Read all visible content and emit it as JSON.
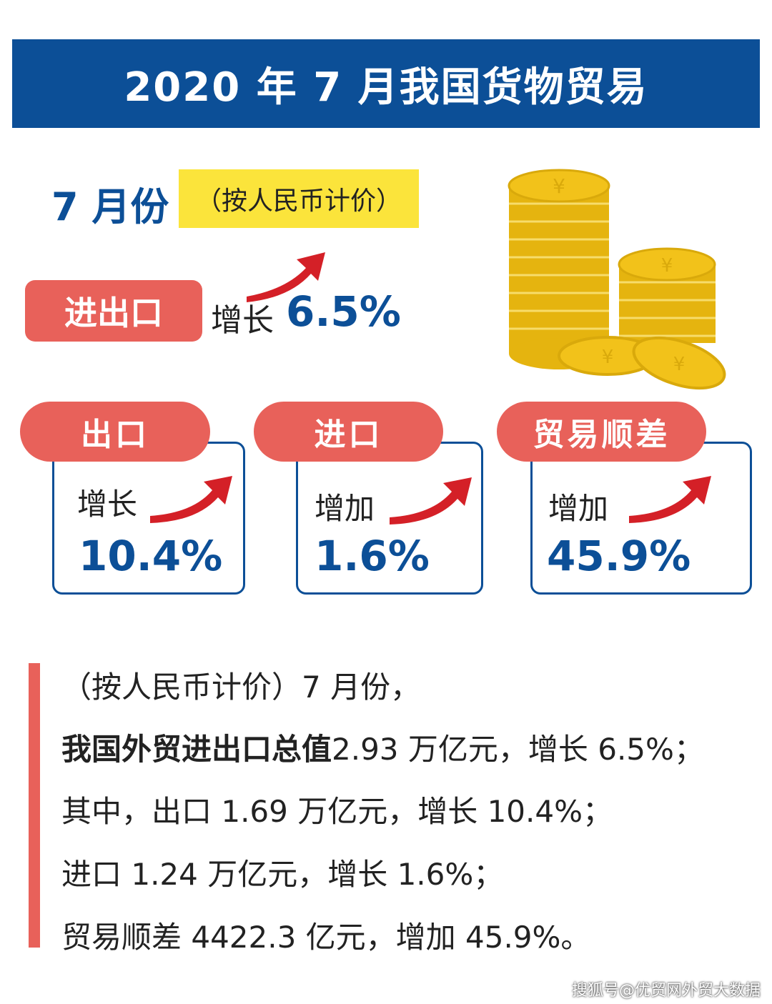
{
  "header": {
    "title": "2020 年 7 月我国货物贸易"
  },
  "summary": {
    "month_label": "7 月份",
    "pricing_note": "（按人民币计价）",
    "total_label": "进出口",
    "total_verb": "增长",
    "total_value": "6.5%"
  },
  "cards": [
    {
      "label": "出口",
      "verb": "增长",
      "value": "10.4%"
    },
    {
      "label": "进口",
      "verb": "增加",
      "value": "1.6%"
    },
    {
      "label": "贸易顺差",
      "verb": "增加",
      "value": "45.9%"
    }
  ],
  "details": {
    "line1": "（按人民币计价）7 月份，",
    "line2_bold": "我国外贸进出口总值",
    "line2_rest": "2.93 万亿元，增长 6.5%；",
    "line3": "其中，出口 1.69 万亿元，增长 10.4%；",
    "line4": "进口 1.24 万亿元，增长 1.6%；",
    "line5": "贸易顺差 4422.3 亿元，增加 45.9%。"
  },
  "watermark": "搜狐号@优贸网外贸大数据",
  "colors": {
    "brand_blue": "#0c4f97",
    "accent_red": "#e8615a",
    "highlight_yellow": "#fbe43b",
    "coin_gold": "#f2c21a"
  },
  "icons": [
    "up-arrow-icon",
    "coins-icon"
  ]
}
